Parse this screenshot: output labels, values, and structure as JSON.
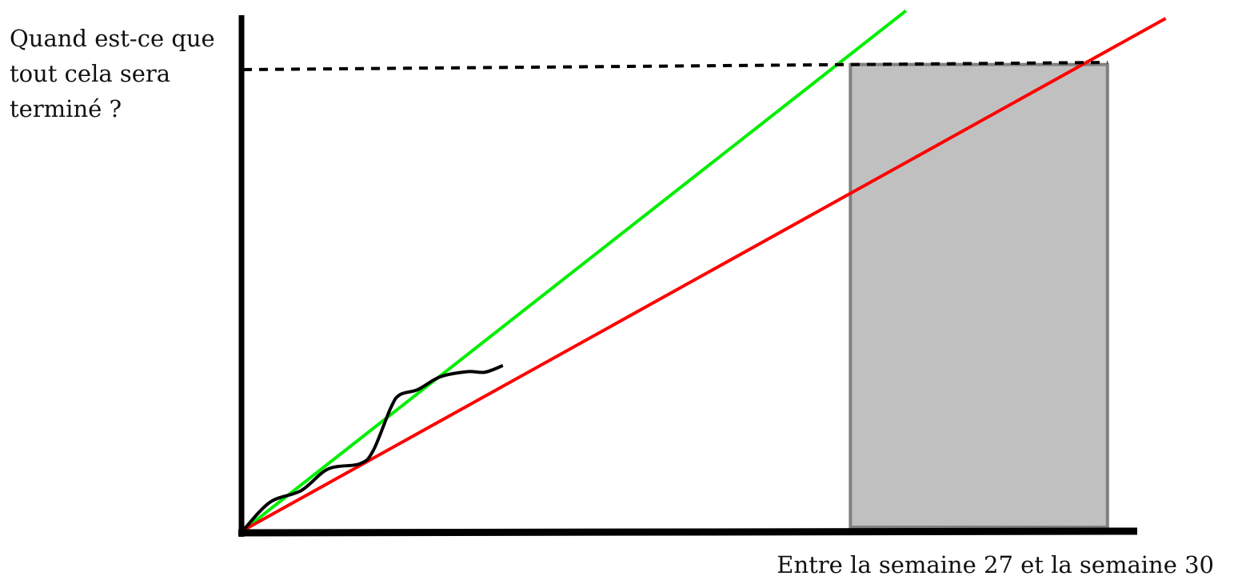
{
  "chart_data": {
    "type": "line",
    "title": "",
    "ylabel": "Quand est-ce que\ntout cela sera\nterminé ?",
    "xlabel": "Entre la semaine 27 et la semaine 30",
    "xlim": [
      0,
      100
    ],
    "ylim": [
      0,
      100
    ],
    "grid": false,
    "legend": "none",
    "series": [
      {
        "color": "#00ee00",
        "style": "solid",
        "x": [
          0,
          74.0
        ],
        "y": [
          0,
          101.5
        ]
      },
      {
        "color": "#ff0000",
        "style": "solid",
        "x": [
          0,
          103.0
        ],
        "y": [
          0,
          100.0
        ]
      },
      {
        "color": "#000000",
        "style": "solid",
        "x": [
          0,
          3.0,
          6.5,
          9.5,
          13.0,
          14.5,
          16.5,
          17.5,
          19.5,
          22.0,
          25.0,
          27.0,
          29.0
        ],
        "y": [
          0,
          5.5,
          7.8,
          12.0,
          13.0,
          15.5,
          24.0,
          26.5,
          27.5,
          30.0,
          31.0,
          30.9,
          32.2
        ]
      },
      {
        "color": "#000000",
        "style": "dashed",
        "x": [
          0,
          96.5
        ],
        "y": [
          90.0,
          91.4
        ]
      }
    ],
    "shaded_band": {
      "x_start": 67.8,
      "x_end": 96.5,
      "y_top": 91.0,
      "color": "#c0c0c0",
      "border": "#808080"
    }
  }
}
